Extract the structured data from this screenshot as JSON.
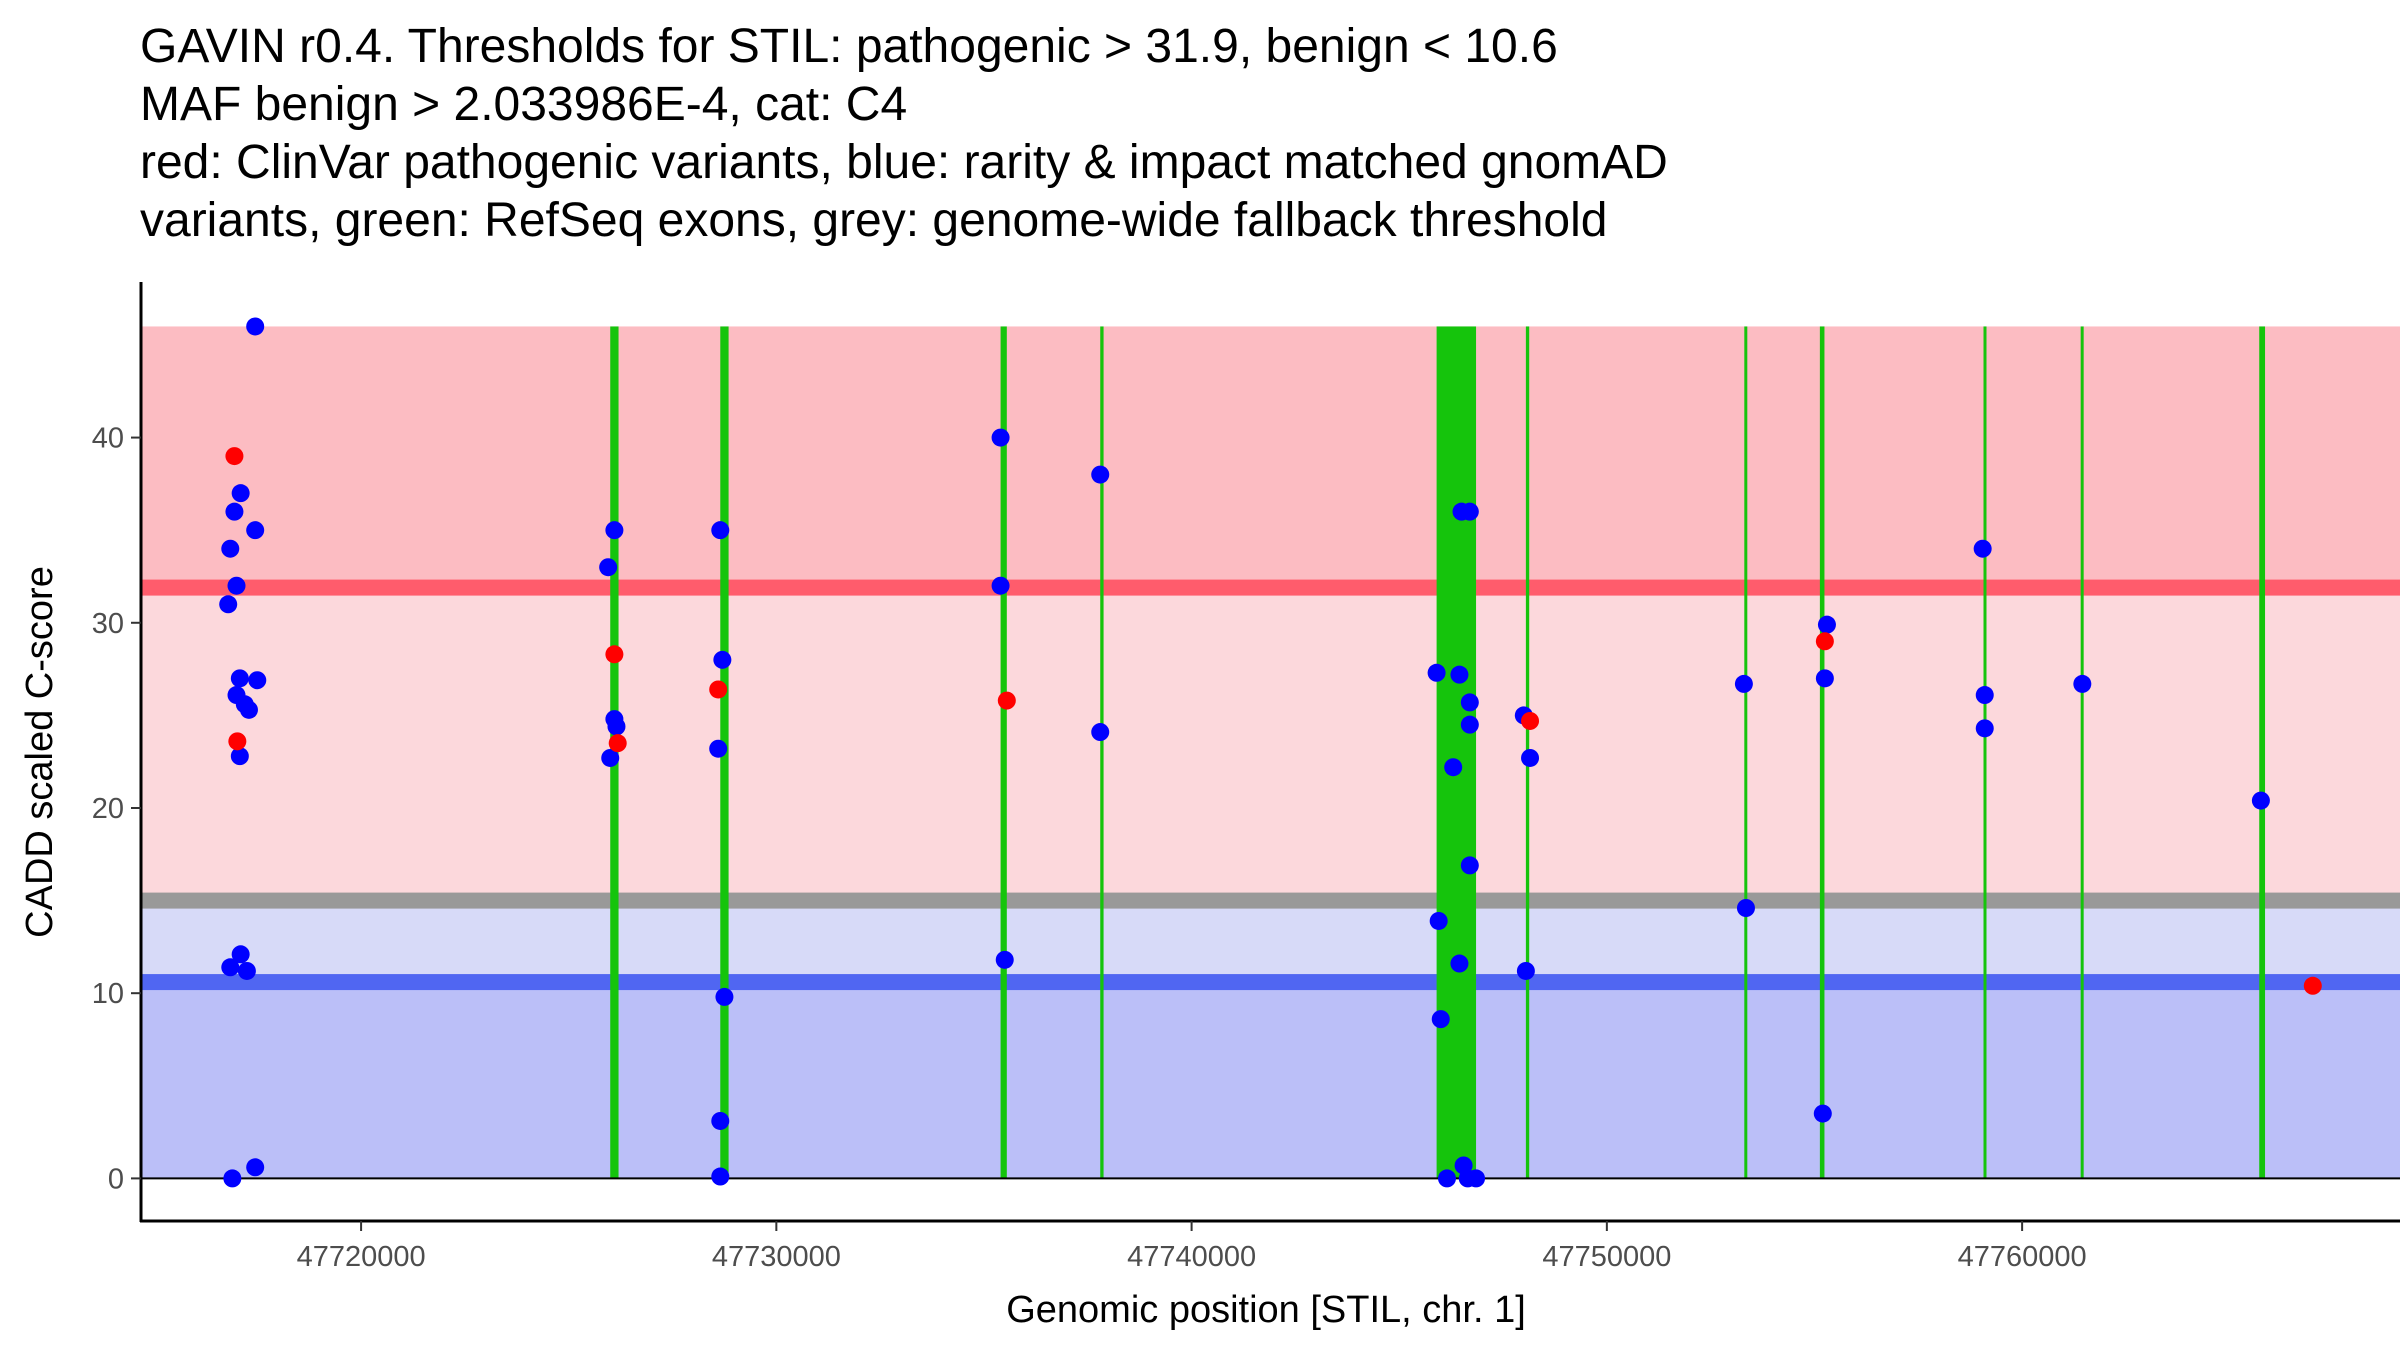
{
  "chart_data": {
    "type": "scatter",
    "title_lines": [
      "GAVIN r0.4. Thresholds for STIL: pathogenic > 31.9, benign < 10.6",
      "MAF benign > 2.033986E-4, cat: C4",
      "red: ClinVar pathogenic variants, blue: rarity & impact matched gnomAD",
      "variants, green: RefSeq exons, grey: genome-wide fallback threshold"
    ],
    "xlabel": "Genomic position [STIL, chr. 1]",
    "ylabel": "CADD scaled C-score",
    "xlim": [
      47714700,
      47769100
    ],
    "ylim": [
      -2.3,
      48.4
    ],
    "x_ticks": [
      47720000,
      47730000,
      47740000,
      47750000,
      47760000
    ],
    "x_tick_labels": [
      "47720000",
      "47730000",
      "47740000",
      "47750000",
      "47760000"
    ],
    "y_ticks": [
      0,
      10,
      20,
      30,
      40
    ],
    "y_tick_labels": [
      "0",
      "10",
      "20",
      "30",
      "40"
    ],
    "bands": {
      "x_range": [
        47714700,
        47769100
      ],
      "pathogenic_top": 46,
      "pathogenic_threshold": 31.9,
      "fallback_threshold": 15.0,
      "benign_threshold": 10.6
    },
    "exons": [
      [
        47726000,
        47726200
      ],
      [
        47728650,
        47728850
      ],
      [
        47735400,
        47735550
      ],
      [
        47737800,
        47737880
      ],
      [
        47745900,
        47746850
      ],
      [
        47748050,
        47748130
      ],
      [
        47753310,
        47753380
      ],
      [
        47755130,
        47755240
      ],
      [
        47759070,
        47759130
      ],
      [
        47761410,
        47761470
      ],
      [
        47765710,
        47765850
      ]
    ],
    "series": [
      {
        "name": "ClinVar pathogenic variants",
        "color": "#ff0000",
        "points": [
          [
            47716950,
            39.0
          ],
          [
            47717020,
            23.6
          ],
          [
            47726100,
            28.3
          ],
          [
            47726180,
            23.5
          ],
          [
            47728600,
            26.4
          ],
          [
            47735550,
            25.8
          ],
          [
            47748150,
            24.7
          ],
          [
            47755250,
            29.0
          ],
          [
            47767000,
            10.4
          ]
        ]
      },
      {
        "name": "rarity & impact matched gnomAD variants",
        "color": "#0000ff",
        "points": [
          [
            47717450,
            46.0
          ],
          [
            47717100,
            37.0
          ],
          [
            47716950,
            36.0
          ],
          [
            47716850,
            34.0
          ],
          [
            47717450,
            35.0
          ],
          [
            47717000,
            32.0
          ],
          [
            47716800,
            31.0
          ],
          [
            47717080,
            27.0
          ],
          [
            47717500,
            26.9
          ],
          [
            47717000,
            26.1
          ],
          [
            47717200,
            25.6
          ],
          [
            47717300,
            25.3
          ],
          [
            47717080,
            22.8
          ],
          [
            47717100,
            12.1
          ],
          [
            47716850,
            11.4
          ],
          [
            47717250,
            11.2
          ],
          [
            47716900,
            0.0
          ],
          [
            47717450,
            0.6
          ],
          [
            47725950,
            33.0
          ],
          [
            47726100,
            35.0
          ],
          [
            47726100,
            24.8
          ],
          [
            47726150,
            24.4
          ],
          [
            47726000,
            22.7
          ],
          [
            47728650,
            35.0
          ],
          [
            47728700,
            28.0
          ],
          [
            47728600,
            23.2
          ],
          [
            47728750,
            9.8
          ],
          [
            47728650,
            3.1
          ],
          [
            47728650,
            0.1
          ],
          [
            47735400,
            40.0
          ],
          [
            47735400,
            32.0
          ],
          [
            47735500,
            11.8
          ],
          [
            47737800,
            38.0
          ],
          [
            47737800,
            24.1
          ],
          [
            47745900,
            27.3
          ],
          [
            47746500,
            36.0
          ],
          [
            47746700,
            36.0
          ],
          [
            47746450,
            27.2
          ],
          [
            47746700,
            25.7
          ],
          [
            47746700,
            24.5
          ],
          [
            47746300,
            22.2
          ],
          [
            47746700,
            16.9
          ],
          [
            47745950,
            13.9
          ],
          [
            47746450,
            11.6
          ],
          [
            47746000,
            8.6
          ],
          [
            47746150,
            0.0
          ],
          [
            47746550,
            0.7
          ],
          [
            47746650,
            0.0
          ],
          [
            47746850,
            0.0
          ],
          [
            47748000,
            25.0
          ],
          [
            47748150,
            22.7
          ],
          [
            47748050,
            11.2
          ],
          [
            47753300,
            26.7
          ],
          [
            47753350,
            14.6
          ],
          [
            47755300,
            29.9
          ],
          [
            47755250,
            27.0
          ],
          [
            47755200,
            3.5
          ],
          [
            47759050,
            34.0
          ],
          [
            47759100,
            26.1
          ],
          [
            47759100,
            24.3
          ],
          [
            47761450,
            26.7
          ],
          [
            47765750,
            20.4
          ]
        ]
      }
    ],
    "colors": {
      "pathogenic_zone": "#fcbcc2",
      "pathogenic_line": "#ff5c6c",
      "intermediate_zone": "#fcd8dc",
      "fallback_line": "#999999",
      "fallback_zone": "#d7daf8",
      "benign_line": "#5066f2",
      "benign_zone": "#bbbff8",
      "exon": "#15c40c"
    }
  }
}
